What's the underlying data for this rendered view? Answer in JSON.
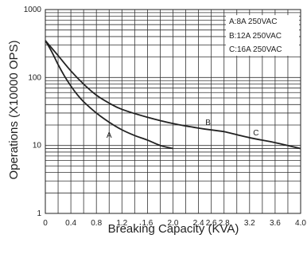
{
  "chart_data": {
    "type": "line",
    "title": "",
    "xlabel": "Breaking Capacity (KVA)",
    "ylabel": "Operations (X10000 OPS)",
    "xlim": [
      0,
      4.0
    ],
    "ylim": [
      1,
      1000
    ],
    "y_scale": "log",
    "grid": true,
    "legend_position": "top-right",
    "x_ticks": [
      "0",
      "0.4",
      "0.8",
      "1.2",
      "1.6",
      "2.0",
      "2.4",
      "2.6",
      "2.8",
      "3.2",
      "3.6",
      "4.0"
    ],
    "x_tick_values": [
      0,
      0.4,
      0.8,
      1.2,
      1.6,
      2.0,
      2.4,
      2.6,
      2.8,
      3.2,
      3.6,
      4.0
    ],
    "x_grid_values": [
      0,
      0.2,
      0.4,
      0.6,
      0.8,
      1.0,
      1.2,
      1.4,
      1.6,
      1.8,
      2.0,
      2.2,
      2.4,
      2.6,
      2.8,
      3.0,
      3.2,
      3.4,
      3.6,
      3.8,
      4.0
    ],
    "y_ticks": [
      "1",
      "10",
      "100",
      "1000"
    ],
    "y_tick_values": [
      1,
      10,
      100,
      1000
    ],
    "legend": [
      "A:8A 250VAC",
      "B:12A 250VAC",
      "C:16A 250VAC"
    ],
    "series": [
      {
        "name": "A",
        "x": [
          0,
          0.1,
          0.2,
          0.3,
          0.4,
          0.5,
          0.6,
          0.8,
          1.0,
          1.2,
          1.4,
          1.6,
          1.8,
          2.0
        ],
        "y": [
          350,
          240,
          155,
          105,
          75,
          56,
          44,
          30,
          22,
          17,
          14,
          12,
          10,
          9
        ]
      },
      {
        "name": "B",
        "x": [
          0,
          0.2,
          0.4,
          0.6,
          0.8,
          1.0,
          1.2,
          1.6,
          2.0,
          2.4,
          2.8
        ],
        "y": [
          350,
          210,
          125,
          80,
          55,
          42,
          34,
          26,
          21,
          18,
          16
        ]
      },
      {
        "name": "C",
        "x": [
          2.8,
          3.2,
          3.6,
          4.0
        ],
        "y": [
          16,
          13,
          11,
          9
        ]
      }
    ],
    "curve_labels": [
      {
        "text": "A",
        "x": 1.0,
        "y": 13
      },
      {
        "text": "B",
        "x": 2.55,
        "y": 20
      },
      {
        "text": "C",
        "x": 3.3,
        "y": 14
      }
    ]
  }
}
